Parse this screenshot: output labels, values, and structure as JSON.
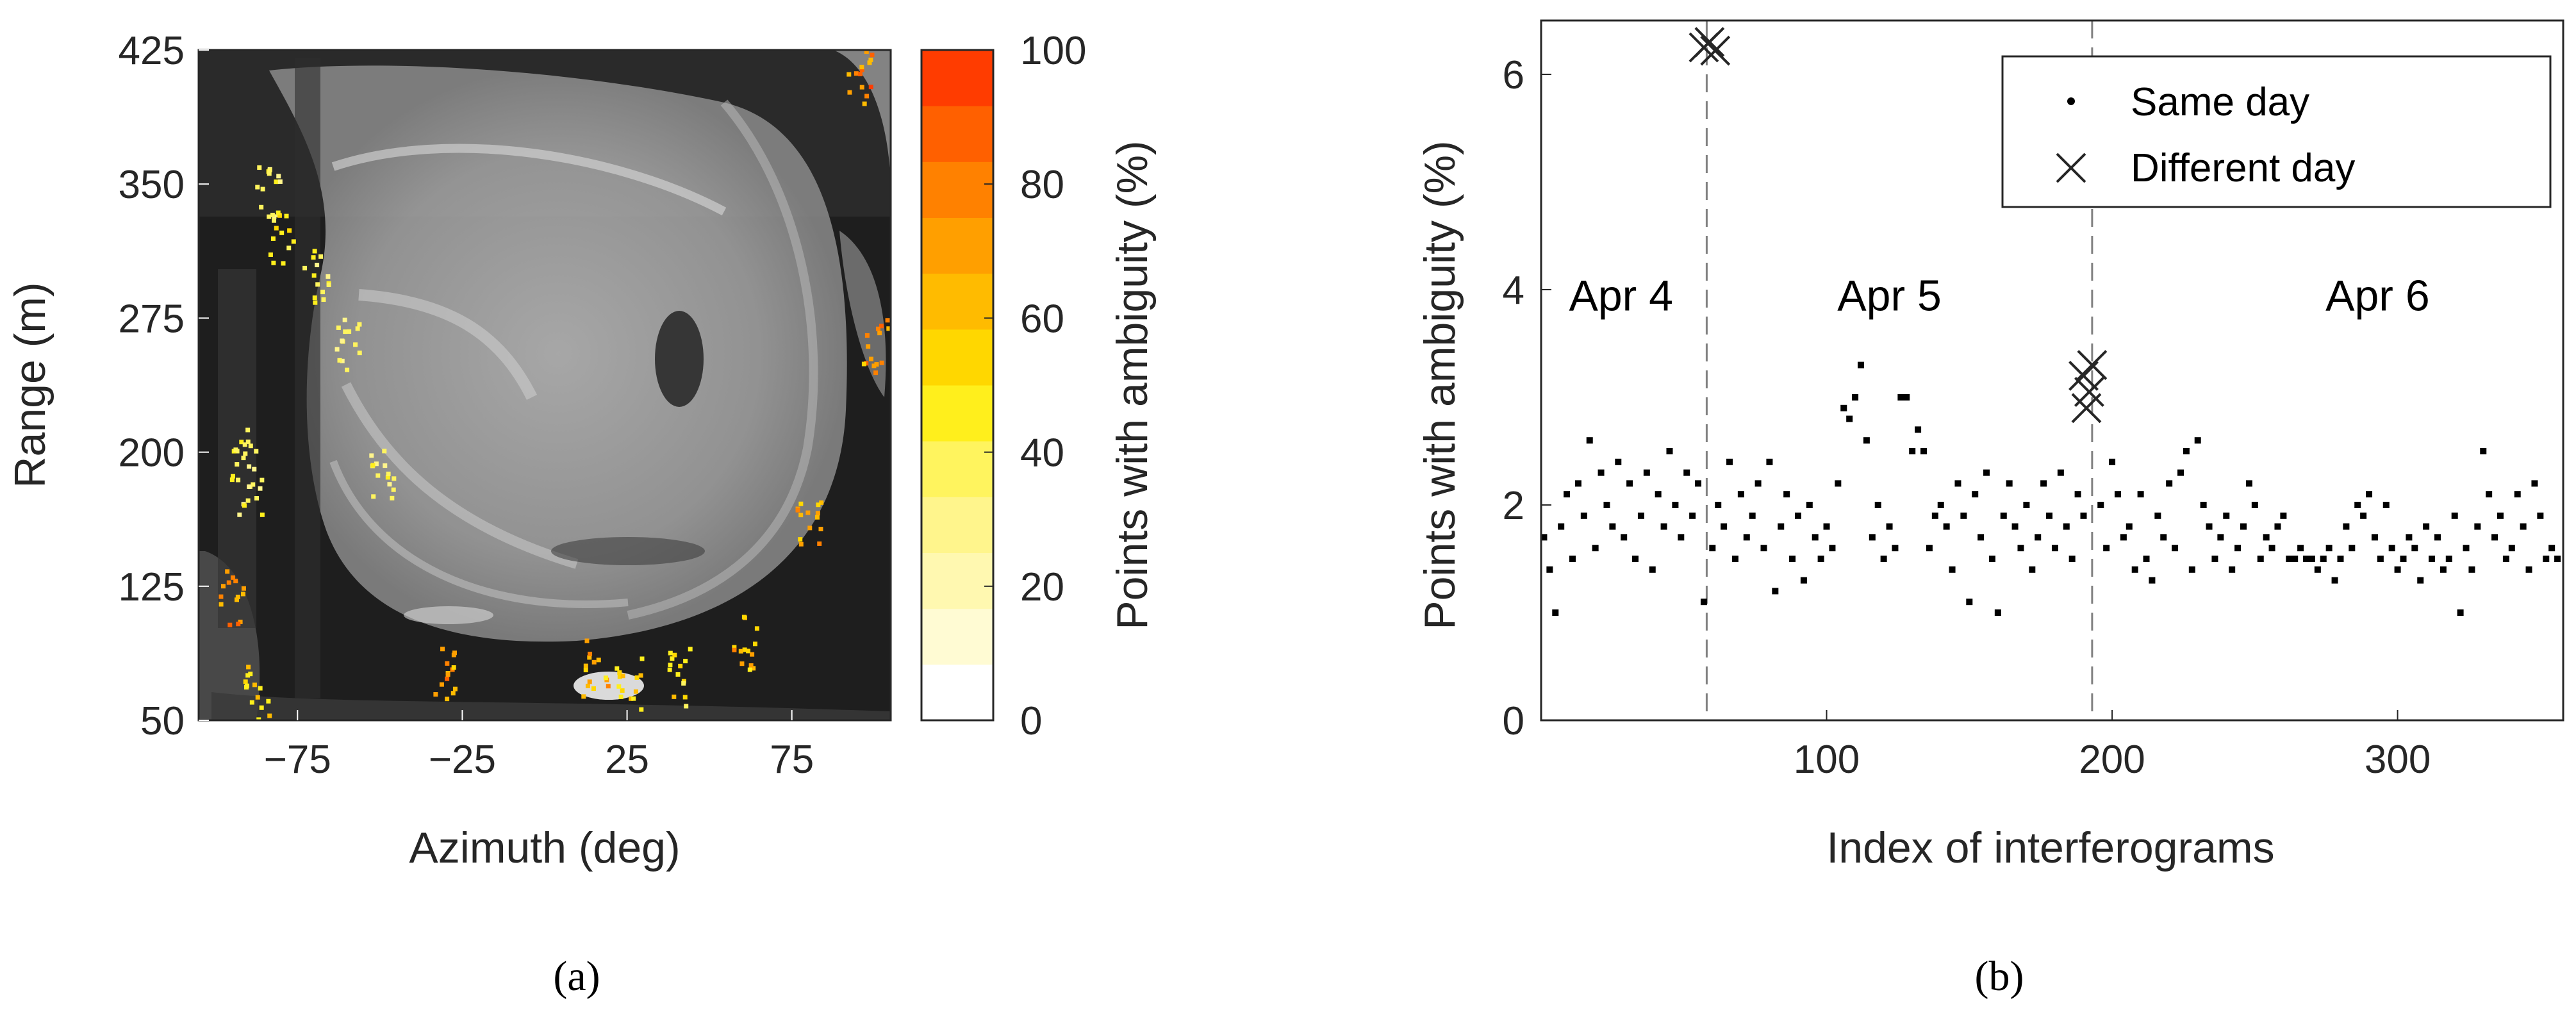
{
  "chart_data": [
    {
      "type": "heatmap",
      "panel_label": "a",
      "xlabel": "Azimuth (deg)",
      "ylabel": "Range (m)",
      "xlim": [
        -105,
        105
      ],
      "ylim": [
        50,
        425
      ],
      "x_ticks": [
        -75,
        -25,
        25,
        75
      ],
      "x_tick_labels": [
        "−75",
        "−25",
        "25",
        "75"
      ],
      "y_ticks": [
        50,
        125,
        200,
        275,
        350,
        425
      ],
      "y_tick_labels": [
        "50",
        "125",
        "200",
        "275",
        "350",
        "425"
      ],
      "background": "grayscale radar amplitude image (open-pit mine)",
      "colorbar": {
        "label": "Points with ambiguity (%)",
        "range": [
          0,
          100
        ],
        "ticks": [
          0,
          20,
          40,
          60,
          80,
          100
        ],
        "tick_labels": [
          "0",
          "20",
          "40",
          "60",
          "80",
          "100"
        ],
        "levels": 12,
        "colors": [
          "#ffffff",
          "#fffbd3",
          "#fff8b0",
          "#fff58c",
          "#fff45e",
          "#ffef1c",
          "#ffd700",
          "#ffbb00",
          "#ff9f00",
          "#ff8100",
          "#ff6000",
          "#ff3c00"
        ]
      },
      "ambiguity_clusters": [
        {
          "azimuth": -92,
          "range": 200,
          "value": 45
        },
        {
          "azimuth": -90,
          "range": 180,
          "value": 40
        },
        {
          "azimuth": -84,
          "range": 345,
          "value": 40
        },
        {
          "azimuth": -80,
          "range": 320,
          "value": 50
        },
        {
          "azimuth": -70,
          "range": 300,
          "value": 45
        },
        {
          "azimuth": -60,
          "range": 260,
          "value": 40
        },
        {
          "azimuth": -50,
          "range": 190,
          "value": 40
        },
        {
          "azimuth": -95,
          "range": 120,
          "value": 85
        },
        {
          "azimuth": -88,
          "range": 65,
          "value": 60
        },
        {
          "azimuth": -30,
          "range": 75,
          "value": 80
        },
        {
          "azimuth": 15,
          "range": 80,
          "value": 70
        },
        {
          "azimuth": 25,
          "range": 70,
          "value": 60
        },
        {
          "azimuth": 40,
          "range": 75,
          "value": 55
        },
        {
          "azimuth": 60,
          "range": 95,
          "value": 70
        },
        {
          "azimuth": 80,
          "range": 160,
          "value": 75
        },
        {
          "azimuth": 95,
          "range": 410,
          "value": 85
        },
        {
          "azimuth": 100,
          "range": 260,
          "value": 80
        }
      ]
    },
    {
      "type": "scatter",
      "panel_label": "b",
      "xlabel": "Index of interferograms",
      "ylabel": "Points with ambiguity (%)",
      "xlim": [
        0,
        358
      ],
      "ylim": [
        0,
        6.5
      ],
      "x_ticks": [
        100,
        200,
        300
      ],
      "y_ticks": [
        0,
        2,
        4,
        6
      ],
      "legend": {
        "position": "top-right",
        "entries": [
          "Same day",
          "Different day"
        ]
      },
      "day_boundaries": [
        58,
        193
      ],
      "annotations": [
        {
          "text": "Apr 4",
          "x": 28,
          "y": 3.95
        },
        {
          "text": "Apr 5",
          "x": 122,
          "y": 3.95
        },
        {
          "text": "Apr 6",
          "x": 293,
          "y": 3.95
        }
      ],
      "series": [
        {
          "name": "Same day",
          "marker": "dot",
          "x": [
            1,
            3,
            5,
            7,
            9,
            11,
            13,
            15,
            17,
            19,
            21,
            23,
            25,
            27,
            29,
            31,
            33,
            35,
            37,
            39,
            41,
            43,
            45,
            47,
            49,
            51,
            53,
            55,
            57,
            60,
            62,
            64,
            66,
            68,
            70,
            72,
            74,
            76,
            78,
            80,
            82,
            84,
            86,
            88,
            90,
            92,
            94,
            96,
            98,
            100,
            102,
            104,
            106,
            108,
            110,
            112,
            114,
            116,
            118,
            120,
            122,
            124,
            126,
            128,
            130,
            132,
            134,
            136,
            138,
            140,
            142,
            144,
            146,
            148,
            150,
            152,
            154,
            156,
            158,
            160,
            162,
            164,
            166,
            168,
            170,
            172,
            174,
            176,
            178,
            180,
            182,
            184,
            186,
            188,
            190,
            196,
            198,
            200,
            202,
            204,
            206,
            208,
            210,
            212,
            214,
            216,
            218,
            220,
            222,
            224,
            226,
            228,
            230,
            232,
            234,
            236,
            238,
            240,
            242,
            244,
            246,
            248,
            250,
            252,
            254,
            256,
            258,
            260,
            262,
            264,
            266,
            268,
            270,
            272,
            274,
            276,
            278,
            280,
            282,
            284,
            286,
            288,
            290,
            292,
            294,
            296,
            298,
            300,
            302,
            304,
            306,
            308,
            310,
            312,
            314,
            316,
            318,
            320,
            322,
            324,
            326,
            328,
            330,
            332,
            334,
            336,
            338,
            340,
            342,
            344,
            346,
            348,
            350,
            352,
            354,
            356
          ],
          "y": [
            1.7,
            1.4,
            1.0,
            1.8,
            2.1,
            1.5,
            2.2,
            1.9,
            2.6,
            1.6,
            2.3,
            2.0,
            1.8,
            2.4,
            1.7,
            2.2,
            1.5,
            1.9,
            2.3,
            1.4,
            2.1,
            1.8,
            2.5,
            2.0,
            1.7,
            2.3,
            1.9,
            2.2,
            1.1,
            1.6,
            2.0,
            1.8,
            2.4,
            1.5,
            2.1,
            1.7,
            1.9,
            2.2,
            1.6,
            2.4,
            1.2,
            1.8,
            2.1,
            1.5,
            1.9,
            1.3,
            2.0,
            1.7,
            1.5,
            1.8,
            1.6,
            2.2,
            2.9,
            2.8,
            3.0,
            3.3,
            2.6,
            1.7,
            2.0,
            1.5,
            1.8,
            1.6,
            3.0,
            3.0,
            2.5,
            2.7,
            2.5,
            1.6,
            1.9,
            2.0,
            1.8,
            1.4,
            2.2,
            1.9,
            1.1,
            2.1,
            1.7,
            2.3,
            1.5,
            1.0,
            1.9,
            2.2,
            1.8,
            1.6,
            2.0,
            1.4,
            1.7,
            2.2,
            1.9,
            1.6,
            2.3,
            1.8,
            1.5,
            2.1,
            1.9,
            2.0,
            1.6,
            2.4,
            2.1,
            1.7,
            1.8,
            1.4,
            2.1,
            1.5,
            1.3,
            1.9,
            1.7,
            2.2,
            1.6,
            2.3,
            2.5,
            1.4,
            2.6,
            2.0,
            1.8,
            1.5,
            1.7,
            1.9,
            1.4,
            1.6,
            1.8,
            2.2,
            2.0,
            1.5,
            1.7,
            1.6,
            1.8,
            1.9,
            1.5,
            1.5,
            1.6,
            1.5,
            1.5,
            1.4,
            1.5,
            1.6,
            1.3,
            1.5,
            1.8,
            1.6,
            2.0,
            1.9,
            2.1,
            1.7,
            1.5,
            2.0,
            1.6,
            1.4,
            1.5,
            1.7,
            1.6,
            1.3,
            1.8,
            1.5,
            1.7,
            1.4,
            1.5,
            1.9,
            1.0,
            1.6,
            1.4,
            1.8,
            2.5,
            2.1,
            1.7,
            1.9,
            1.5,
            1.6,
            2.1,
            1.8,
            1.4,
            2.2,
            1.9,
            1.5,
            1.6,
            1.5
          ]
        },
        {
          "name": "Different day",
          "marker": "x",
          "x": [
            57,
            59,
            61,
            190,
            191,
            192,
            193
          ],
          "y": [
            6.25,
            6.3,
            6.22,
            3.2,
            2.9,
            3.05,
            3.3
          ]
        }
      ]
    }
  ],
  "captions": [
    "(a)",
    "(b)"
  ]
}
